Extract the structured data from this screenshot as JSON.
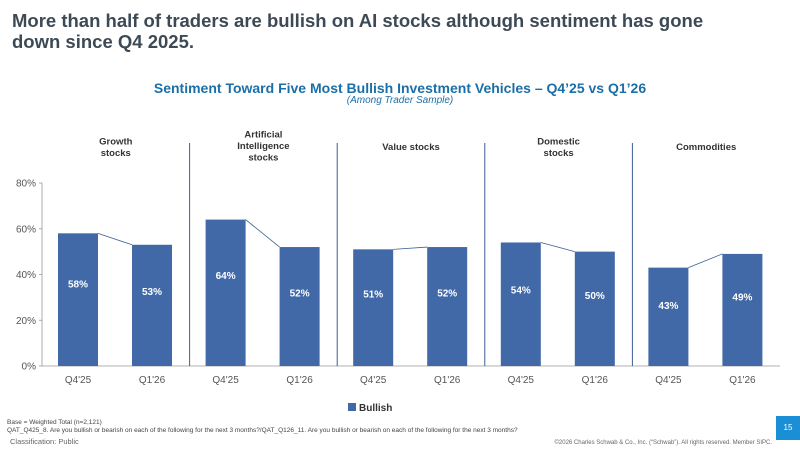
{
  "headline": "More than half of traders are bullish on AI stocks although sentiment has gone down since Q4 2025.",
  "chart_data": {
    "type": "bar",
    "title": "Sentiment Toward Five Most Bullish Investment Vehicles – Q4’25 vs Q1’26",
    "subtitle": "(Among Trader Sample)",
    "groups": [
      {
        "label": "Growth\nstocks",
        "categories": [
          "Q4'25",
          "Q1'26"
        ],
        "values": [
          58,
          53
        ]
      },
      {
        "label": "Artificial\nIntelligence\nstocks",
        "categories": [
          "Q4'25",
          "Q1'26"
        ],
        "values": [
          64,
          52
        ]
      },
      {
        "label": "Value stocks",
        "categories": [
          "Q4'25",
          "Q1'26"
        ],
        "values": [
          51,
          52
        ]
      },
      {
        "label": "Domestic\nstocks",
        "categories": [
          "Q4'25",
          "Q1'26"
        ],
        "values": [
          54,
          50
        ]
      },
      {
        "label": "Commodities",
        "categories": [
          "Q4'25",
          "Q1'26"
        ],
        "values": [
          43,
          49
        ]
      }
    ],
    "series": [
      {
        "name": "Bullish",
        "color": "#4169a8"
      }
    ],
    "y_ticks": [
      "0%",
      "20%",
      "40%",
      "60%",
      "80%"
    ],
    "ylim": [
      0,
      80
    ],
    "value_suffix": "%",
    "grid": false,
    "legend_position": "bottom-center"
  },
  "footnotes": {
    "base": "Base = Weighted Total (n=2,121)",
    "question": "QAT_Q425_8. Are you bullish or bearish on each of the following for the next 3 months?/QAT_Q126_11. Are you bullish or bearish on each of the following for the next 3 months?"
  },
  "classification": "Classification: Public",
  "copyright": "©2026 Charles Schwab & Co., Inc. (“Schwab”). All rights reserved. Member SIPC.",
  "page_number": "15"
}
